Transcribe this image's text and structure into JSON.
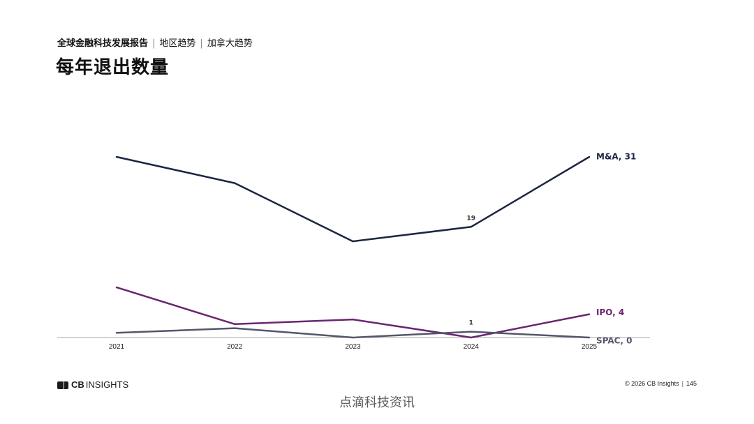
{
  "header": {
    "report_title": "全球金融科技发展报告",
    "section_1": "地区趋势",
    "section_2": "加拿大趋势",
    "separator": "|",
    "page_title": "每年退出数量"
  },
  "chart_data": {
    "type": "line",
    "x": [
      "2021",
      "2022",
      "2023",
      "2024",
      "2025"
    ],
    "ylim": [
      0,
      31
    ],
    "grid": false,
    "legend": "none",
    "series": [
      {
        "name": "M&A",
        "label": "M&A, 31",
        "values": [
          31,
          26.5,
          16.5,
          19,
          31
        ],
        "color": "#1c2541"
      },
      {
        "name": "IPO",
        "label": "IPO, 4",
        "values": [
          8.6,
          2.3,
          3.1,
          0,
          4
        ],
        "color": "#6b2570"
      },
      {
        "name": "SPAC",
        "label": "SPAC, 0",
        "values": [
          0.8,
          1.6,
          0,
          1,
          0
        ],
        "color": "#54566b"
      }
    ],
    "annotations": [
      {
        "series": "M&A",
        "x": "2024",
        "text": "19",
        "color": "#333333"
      },
      {
        "series": "SPAC",
        "x": "2024",
        "text": "1",
        "color": "#333333"
      }
    ]
  },
  "footer": {
    "logo_mark_name": "cb-logo-icon",
    "logo_main": "CB",
    "logo_sub": "INSIGHTS",
    "copyright": "© 2026 CB Insights",
    "separator": "|",
    "page_number": "145"
  },
  "watermark": "点滴科技资讯"
}
